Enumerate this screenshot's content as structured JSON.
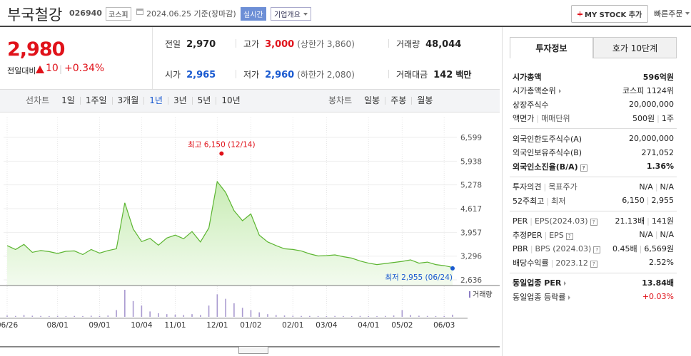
{
  "header": {
    "name": "부국철강",
    "code": "026940",
    "market": "코스피",
    "date": "2024.06.25",
    "basis": "기준(장마감)",
    "realtime": "실시간",
    "overview": "기업개요",
    "mystock": "MY STOCK 추가",
    "quick_order": "빠른주문"
  },
  "price": {
    "current": "2,980",
    "change_label": "전일대비",
    "change": "10",
    "change_rate": "+0.34%",
    "tone": "up"
  },
  "summary": [
    [
      {
        "label": "전일",
        "value": "2,970"
      },
      {
        "label": "고가",
        "value": "3,000",
        "tone": "up",
        "extra": "(상한가 3,860)"
      },
      {
        "label": "거래량",
        "value": "48,044"
      }
    ],
    [
      {
        "label": "시가",
        "value": "2,965",
        "tone": "down"
      },
      {
        "label": "저가",
        "value": "2,960",
        "tone": "down",
        "extra": "(하한가 2,080)"
      },
      {
        "label": "거래대금",
        "value": "142",
        "unit": "백만"
      }
    ]
  ],
  "chart_tabs": {
    "line": "선차트",
    "periods": [
      "1일",
      "1주일",
      "3개월",
      "1년",
      "3년",
      "5년",
      "10년"
    ],
    "selected": "1년",
    "candle": "봉차트",
    "candles": [
      "일봉",
      "주봉",
      "월봉"
    ]
  },
  "chart_data": {
    "type": "line",
    "color": "#5cb531",
    "categories": [
      "06/26",
      null,
      null,
      null,
      null,
      null,
      "08/01",
      null,
      null,
      null,
      null,
      "09/01",
      null,
      null,
      null,
      null,
      "10/04",
      null,
      null,
      null,
      "11/01",
      null,
      null,
      null,
      null,
      "12/01",
      null,
      null,
      null,
      "01/02",
      null,
      null,
      null,
      null,
      "02/01",
      null,
      null,
      null,
      "03/04",
      null,
      null,
      null,
      null,
      "04/01",
      null,
      null,
      null,
      "05/02",
      null,
      null,
      null,
      null,
      "06/03",
      null
    ],
    "values": [
      3590,
      3480,
      3620,
      3400,
      3450,
      3420,
      3370,
      3430,
      3440,
      3340,
      3480,
      3380,
      3450,
      3500,
      4780,
      4050,
      3700,
      3790,
      3600,
      3800,
      3880,
      3780,
      3980,
      3690,
      4080,
      5370,
      5070,
      4560,
      4280,
      4470,
      3880,
      3690,
      3590,
      3500,
      3480,
      3440,
      3360,
      3300,
      3310,
      3330,
      3280,
      3240,
      3160,
      3100,
      3060,
      3090,
      3120,
      3150,
      3190,
      3100,
      3130,
      3060,
      3030,
      2980
    ],
    "volume": [
      30000,
      20000,
      40000,
      25000,
      20000,
      18000,
      22000,
      15000,
      20000,
      18000,
      25000,
      20000,
      30000,
      150000,
      600000,
      350000,
      250000,
      120000,
      80000,
      60000,
      50000,
      40000,
      60000,
      40000,
      250000,
      500000,
      400000,
      300000,
      200000,
      150000,
      100000,
      60000,
      40000,
      30000,
      25000,
      20000,
      20000,
      18000,
      15000,
      20000,
      18000,
      15000,
      20000,
      18000,
      15000,
      20000,
      30000,
      150000,
      40000,
      25000,
      20000,
      18000,
      20000,
      48044
    ],
    "volume_label": "거래량",
    "ylim": [
      2636,
      6599
    ],
    "yticks": [
      {
        "value": 2636,
        "label": "2,636"
      },
      {
        "value": 3296,
        "label": "3,296"
      },
      {
        "value": 3957,
        "label": "3,957"
      },
      {
        "value": 4617,
        "label": "4,617"
      },
      {
        "value": 5278,
        "label": "5,278"
      },
      {
        "value": 5938,
        "label": "5,938"
      },
      {
        "value": 6599,
        "label": "6,599"
      }
    ],
    "grid": true,
    "high": {
      "label": "최고 6,150 (12/14)",
      "value": 6150
    },
    "low": {
      "label": "최저 2,955 (06/24)",
      "value": 2955
    }
  },
  "side": {
    "tabs": [
      "투자정보",
      "호가 10단계"
    ],
    "selected": "투자정보",
    "sections": [
      [
        {
          "label": [
            "시가총액"
          ],
          "value": [
            "596억원"
          ],
          "bold": true
        },
        {
          "label": [
            "시가총액순위"
          ],
          "value": [
            "코스피 1124위"
          ],
          "link": true
        },
        {
          "label": [
            "상장주식수"
          ],
          "value": [
            "20,000,000"
          ]
        },
        {
          "label": [
            "액면가",
            "매매단위"
          ],
          "value": [
            "500원",
            "1주"
          ]
        }
      ],
      [
        {
          "label": [
            "외국인한도주식수(A)"
          ],
          "value": [
            "20,000,000"
          ]
        },
        {
          "label": [
            "외국인보유주식수(B)"
          ],
          "value": [
            "271,052"
          ]
        },
        {
          "label": [
            "외국인소진율(B/A)"
          ],
          "value": [
            "1.36%"
          ],
          "bold": true,
          "help": true
        }
      ],
      [
        {
          "label": [
            "투자의견",
            "목표주가"
          ],
          "value": [
            "N/A",
            "N/A"
          ]
        },
        {
          "label": [
            "52주최고",
            "최저"
          ],
          "value": [
            "6,150",
            "2,955"
          ]
        }
      ],
      [
        {
          "label": [
            "PER",
            "EPS(2024.03)"
          ],
          "value": [
            "21.13배",
            "141원"
          ],
          "help": true
        },
        {
          "label": [
            "추정PER",
            "EPS"
          ],
          "value": [
            "N/A",
            "N/A"
          ],
          "help": true
        },
        {
          "label": [
            "PBR",
            "BPS (2024.03)"
          ],
          "value": [
            "0.45배",
            "6,569원"
          ],
          "help": true
        },
        {
          "label": [
            "배당수익률",
            "2023.12"
          ],
          "value": [
            "2.52%"
          ],
          "help": true
        }
      ],
      [
        {
          "label": [
            "동일업종 PER"
          ],
          "value": [
            "13.84배"
          ],
          "bold": true,
          "link": true
        },
        {
          "label": [
            "동일업종 등락률"
          ],
          "value": [
            "+0.03%"
          ],
          "tone": "up",
          "link": true
        }
      ]
    ]
  }
}
